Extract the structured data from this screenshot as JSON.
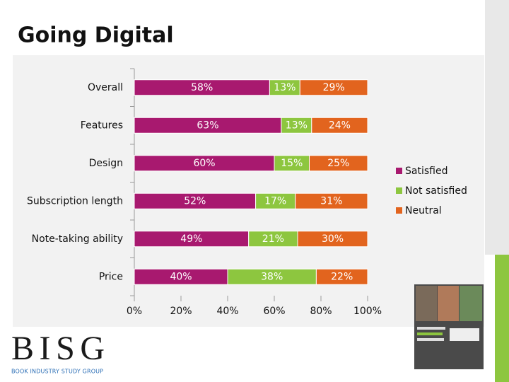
{
  "title": "Going Digital",
  "logo": {
    "name": "BISG",
    "subtitle": "BOOK INDUSTRY STUDY GROUP"
  },
  "chart_data": {
    "type": "stacked-bar-horizontal",
    "categories": [
      "Overall",
      "Features",
      "Design",
      "Subscription length",
      "Note-taking ability",
      "Price"
    ],
    "series": [
      {
        "name": "Satisfied",
        "color": "#a8196f",
        "values": [
          58,
          63,
          60,
          52,
          49,
          40
        ],
        "value_labels": [
          "58%",
          "63%",
          "60%",
          "52%",
          "49%",
          "40%"
        ]
      },
      {
        "name": "Not satisfied",
        "color": "#8dc63f",
        "values": [
          13,
          13,
          15,
          17,
          21,
          38
        ],
        "value_labels": [
          "13%",
          "13%",
          "15%",
          "17%",
          "21%",
          "38%"
        ]
      },
      {
        "name": "Neutral",
        "color": "#e2641e",
        "values": [
          29,
          24,
          25,
          31,
          30,
          22
        ],
        "value_labels": [
          "29%",
          "24%",
          "25%",
          "31%",
          "30%",
          "22%"
        ]
      }
    ],
    "xlim": [
      0,
      100
    ],
    "xticks": [
      {
        "value": 0,
        "label": "0%"
      },
      {
        "value": 20,
        "label": "20%"
      },
      {
        "value": 40,
        "label": "40%"
      },
      {
        "value": 60,
        "label": "60%"
      },
      {
        "value": 80,
        "label": "80%"
      },
      {
        "value": 100,
        "label": "100%"
      }
    ],
    "legend": "right"
  }
}
